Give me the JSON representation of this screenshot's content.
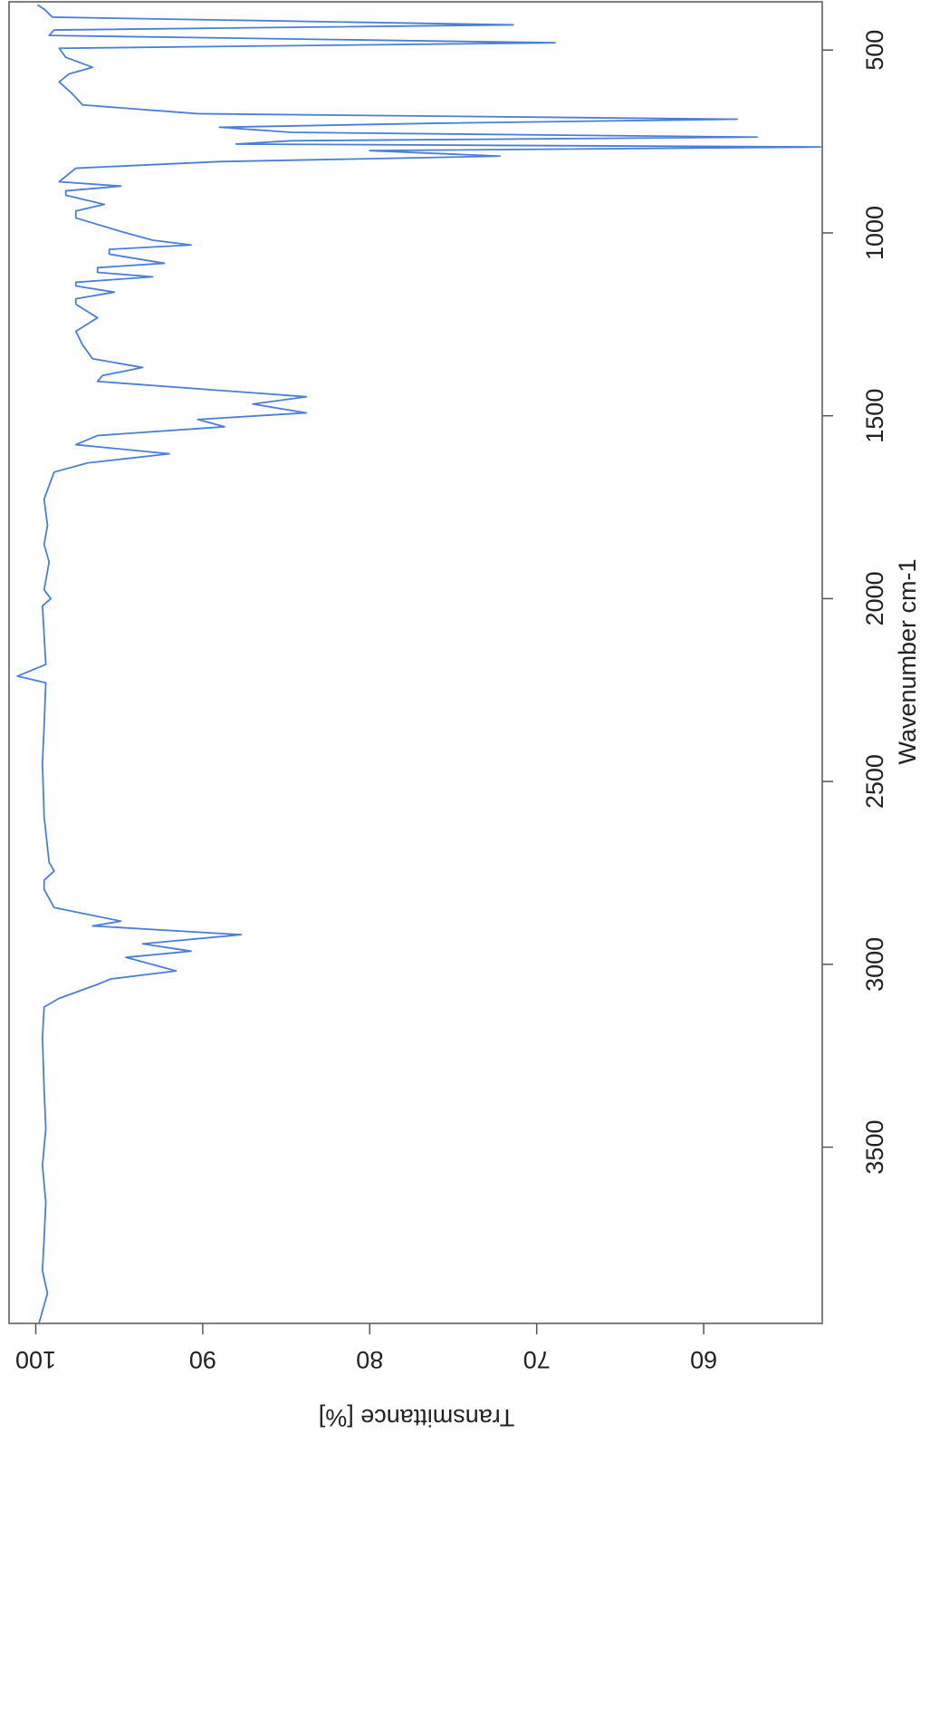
{
  "chart_data": {
    "type": "line",
    "xlabel": "Wavenumber cm-1",
    "ylabel": "Transmittance [%]",
    "x": [
      376,
      388,
      410,
      431,
      445,
      460,
      480,
      495,
      520,
      547,
      565,
      587,
      620,
      650,
      674,
      689,
      700,
      711,
      725,
      738,
      748,
      757,
      765,
      775,
      790,
      805,
      823,
      860,
      872,
      885,
      897,
      922,
      940,
      959,
      996,
      1020,
      1033,
      1045,
      1058,
      1083,
      1095,
      1108,
      1120,
      1135,
      1145,
      1162,
      1180,
      1195,
      1232,
      1269,
      1306,
      1344,
      1368,
      1390,
      1406,
      1448,
      1468,
      1492,
      1510,
      1530,
      1554,
      1579,
      1604,
      1629,
      1654,
      1728,
      1800,
      1852,
      1900,
      1976,
      2000,
      2020,
      2100,
      2180,
      2212,
      2230,
      2348,
      2450,
      2596,
      2721,
      2745,
      2770,
      2795,
      2845,
      2882,
      2895,
      2919,
      2944,
      2964,
      2981,
      3018,
      3040,
      3055,
      3093,
      3117,
      3200,
      3341,
      3450,
      3550,
      3650,
      3750,
      3837,
      3900,
      3980
    ],
    "series": [
      {
        "color": "#4a7fd4",
        "values": [
          99.9,
          99.5,
          99.0,
          71.4,
          98.9,
          99.2,
          68.9,
          98.6,
          98.2,
          96.6,
          98.0,
          98.6,
          97.8,
          97.2,
          90.3,
          58.0,
          75.9,
          89.0,
          84.7,
          56.8,
          84.7,
          88.0,
          53.0,
          80.0,
          72.2,
          89.0,
          97.6,
          98.6,
          94.9,
          98.2,
          98.2,
          95.9,
          97.6,
          97.6,
          94.9,
          93.0,
          90.7,
          95.6,
          95.6,
          92.3,
          96.3,
          96.3,
          93.0,
          97.6,
          97.6,
          95.3,
          97.6,
          97.6,
          96.3,
          97.6,
          97.2,
          96.6,
          93.6,
          96.0,
          96.3,
          83.8,
          87.0,
          83.8,
          90.3,
          88.7,
          96.3,
          97.6,
          92.0,
          96.9,
          98.9,
          99.5,
          99.3,
          99.5,
          99.2,
          99.5,
          99.1,
          99.6,
          99.5,
          99.4,
          101.1,
          99.4,
          99.5,
          99.6,
          99.5,
          99.2,
          98.9,
          99.5,
          99.5,
          98.9,
          94.9,
          96.6,
          87.7,
          93.6,
          90.7,
          94.6,
          91.6,
          95.5,
          96.3,
          98.6,
          99.5,
          99.6,
          99.5,
          99.4,
          99.6,
          99.4,
          99.5,
          99.6,
          99.3,
          99.8
        ]
      }
    ],
    "xlim": [
      368,
      3982
    ],
    "xticks": [
      500,
      1000,
      1500,
      2000,
      2500,
      3000,
      3500
    ],
    "ylim": [
      101.6,
      52.9
    ],
    "yticks": [
      100,
      90,
      80,
      70,
      60
    ]
  }
}
